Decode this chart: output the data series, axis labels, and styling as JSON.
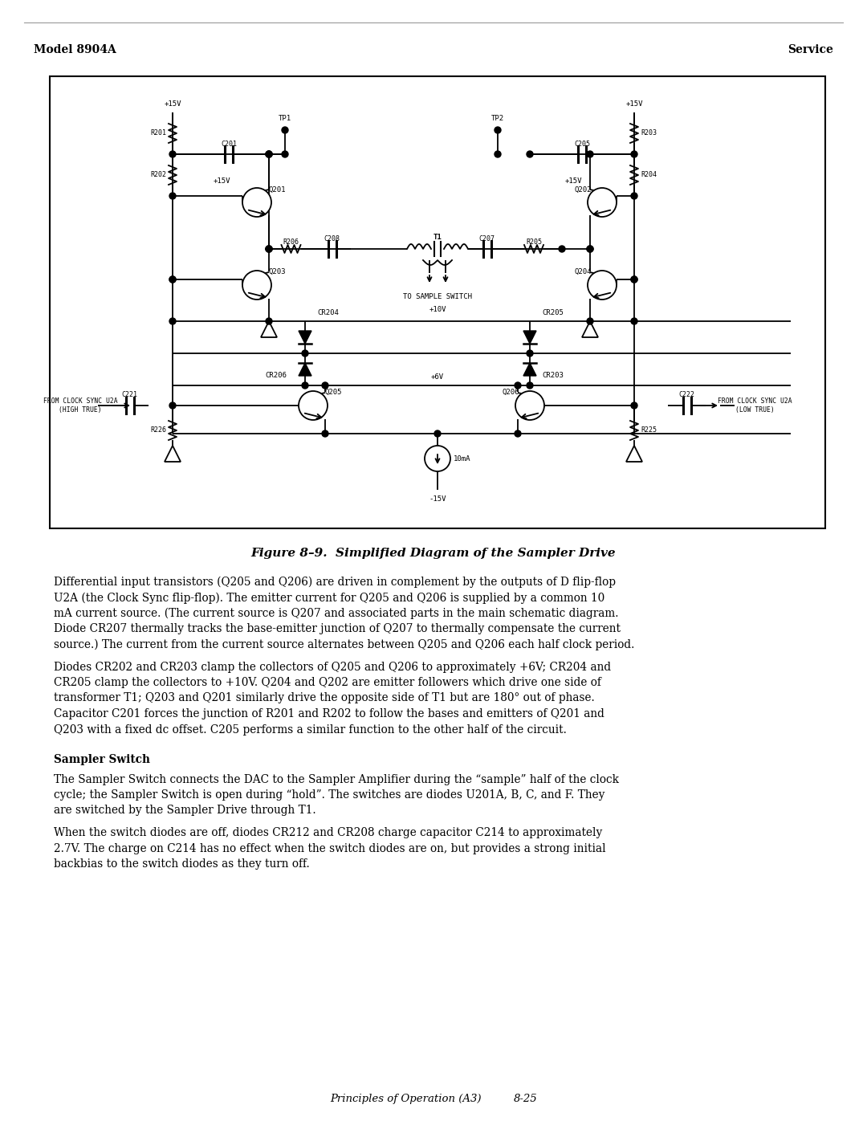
{
  "header_left": "Model 8904A",
  "header_right": "Service",
  "figure_caption": "Figure 8–9.  Simplified Diagram of the Sampler Drive",
  "section_header": "Sampler Switch",
  "footer_center": "Principles of Operation (A3)",
  "footer_right": "8-25",
  "para1_lines": [
    "Differential input transistors (Q205 and Q206) are driven in complement by the outputs of D flip-flop",
    "U2A (the Clock Sync flip-flop). The emitter current for Q205 and Q206 is supplied by a common 10",
    "mA current source. (The current source is Q207 and associated parts in the main schematic diagram.",
    "Diode CR207 thermally tracks the base-emitter junction of Q207 to thermally compensate the current",
    "source.) The current from the current source alternates between Q205 and Q206 each half clock period."
  ],
  "para2_lines": [
    "Diodes CR202 and CR203 clamp the collectors of Q205 and Q206 to approximately +6V; CR204 and",
    "CR205 clamp the collectors to +10V. Q204 and Q202 are emitter followers which drive one side of",
    "transformer T1; Q203 and Q201 similarly drive the opposite side of T1 but are 180° out of phase.",
    "Capacitor C201 forces the junction of R201 and R202 to follow the bases and emitters of Q201 and",
    "Q203 with a fixed dc offset. C205 performs a similar function to the other half of the circuit."
  ],
  "para3_lines": [
    "The Sampler Switch connects the DAC to the Sampler Amplifier during the “sample” half of the clock",
    "cycle; the Sampler Switch is open during “hold”. The switches are diodes U201A, B, C, and F. They",
    "are switched by the Sampler Drive through T1."
  ],
  "para4_lines": [
    "When the switch diodes are off, diodes CR212 and CR208 charge capacitor C214 to approximately",
    "2.7V. The charge on C214 has no effect when the switch diodes are on, but provides a strong initial",
    "backbias to the switch diodes as they turn off."
  ],
  "bg_color": "#ffffff",
  "text_color": "#000000"
}
